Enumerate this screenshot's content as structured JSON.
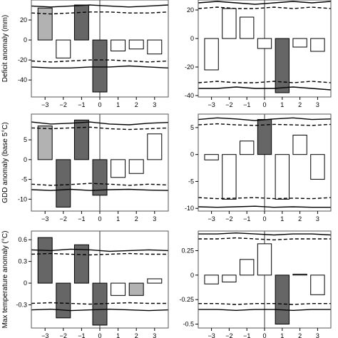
{
  "chart_data": [
    {
      "type": "bar",
      "ylabel": "Deficit anomaly (mm)",
      "categories": [
        "-3",
        "-2",
        "-1",
        "0",
        "1",
        "2",
        "3"
      ],
      "values": [
        32,
        -18,
        35,
        -52,
        -11,
        -9,
        -14
      ],
      "bar_colors": [
        "#b2b2b2",
        "#ffffff",
        "#666666",
        "#666666",
        "#ffffff",
        "#ffffff",
        "#ffffff"
      ],
      "ylim": [
        -57,
        40
      ],
      "yticks": [
        -40,
        -20,
        0,
        20
      ],
      "upper_solid": [
        34,
        33,
        34,
        35,
        34,
        33,
        34,
        35
      ],
      "upper_dashed": [
        27,
        26,
        27,
        28,
        28,
        27,
        27,
        28
      ],
      "lower_dashed": [
        -21,
        -22,
        -21,
        -20,
        -20,
        -21,
        -22,
        -21
      ],
      "lower_solid": [
        -27,
        -28,
        -28,
        -27,
        -27,
        -26,
        -27,
        -28
      ]
    },
    {
      "type": "bar",
      "ylabel": "",
      "categories": [
        "-3",
        "-2",
        "-1",
        "0",
        "1",
        "2",
        "3"
      ],
      "values": [
        -22,
        21,
        15,
        -7,
        -38,
        -6,
        -9
      ],
      "bar_colors": [
        "#ffffff",
        "#ffffff",
        "#ffffff",
        "#ffffff",
        "#666666",
        "#ffffff",
        "#ffffff"
      ],
      "ylim": [
        -41,
        27
      ],
      "yticks": [
        -40,
        -20,
        0,
        20
      ],
      "upper_solid": [
        25,
        26,
        25,
        24,
        25,
        26,
        25,
        26
      ],
      "upper_dashed": [
        21,
        22,
        21,
        21,
        22,
        21,
        22,
        21
      ],
      "lower_dashed": [
        -31,
        -30,
        -31,
        -31,
        -30,
        -31,
        -30,
        -31
      ],
      "lower_solid": [
        -35,
        -35,
        -34,
        -35,
        -35,
        -34,
        -35,
        -36
      ]
    },
    {
      "type": "bar",
      "ylabel": "GDD anomaly (base 5°C)",
      "categories": [
        "-3",
        "-2",
        "-1",
        "0",
        "1",
        "2",
        "3"
      ],
      "values": [
        8.5,
        -12,
        10,
        -9,
        -4.5,
        -3.5,
        6.5
      ],
      "bar_colors": [
        "#b2b2b2",
        "#666666",
        "#666666",
        "#666666",
        "#ffffff",
        "#ffffff",
        "#ffffff"
      ],
      "ylim": [
        -13,
        11.5
      ],
      "yticks": [
        -10,
        -5,
        0,
        5
      ],
      "upper_solid": [
        9.5,
        9,
        9.2,
        9.5,
        9,
        8.8,
        9.2,
        9.4
      ],
      "upper_dashed": [
        8,
        7.8,
        8,
        8.2,
        7.8,
        7.6,
        7.8,
        8
      ],
      "lower_dashed": [
        -6.2,
        -6.5,
        -6.3,
        -6,
        -6.2,
        -6.5,
        -6.2,
        -6.4
      ],
      "lower_solid": [
        -7.6,
        -7.8,
        -7.5,
        -7.8,
        -7.6,
        -7.5,
        -7.7,
        -7.8
      ]
    },
    {
      "type": "bar",
      "ylabel": "",
      "categories": [
        "-3",
        "-2",
        "-1",
        "0",
        "1",
        "2",
        "3"
      ],
      "values": [
        -1,
        -8.3,
        2.5,
        6.5,
        -8.3,
        3.6,
        -4.6
      ],
      "bar_colors": [
        "#ffffff",
        "#ffffff",
        "#ffffff",
        "#666666",
        "#ffffff",
        "#ffffff",
        "#ffffff"
      ],
      "ylim": [
        -10.5,
        7.5
      ],
      "yticks": [
        -10,
        -5,
        0,
        5
      ],
      "upper_solid": [
        6.5,
        6.8,
        6.6,
        6.3,
        6.6,
        6.8,
        6.5,
        6.6
      ],
      "upper_dashed": [
        5.5,
        5.7,
        5.5,
        5.4,
        5.6,
        5.5,
        5.4,
        5.6
      ],
      "lower_dashed": [
        -8,
        -8.2,
        -8.1,
        -8,
        -8.2,
        -8.1,
        -8.2,
        -8
      ],
      "lower_solid": [
        -9.7,
        -9.8,
        -9.7,
        -9.6,
        -9.8,
        -9.7,
        -9.8,
        -9.8
      ]
    },
    {
      "type": "bar",
      "ylabel": "Max temperature anomaly (°C)",
      "categories": [
        "-3",
        "-2",
        "-1",
        "0",
        "1",
        "2",
        "3"
      ],
      "values": [
        0.63,
        -0.48,
        0.53,
        -0.58,
        -0.17,
        -0.17,
        0.06
      ],
      "bar_colors": [
        "#666666",
        "#666666",
        "#666666",
        "#666666",
        "#ffffff",
        "#b2b2b2",
        "#ffffff"
      ],
      "ylim": [
        -0.62,
        0.72
      ],
      "yticks": [
        -0.3,
        0.0,
        0.3,
        0.6
      ],
      "upper_solid": [
        0.46,
        0.45,
        0.47,
        0.46,
        0.44,
        0.45,
        0.46,
        0.45
      ],
      "upper_dashed": [
        0.4,
        0.41,
        0.4,
        0.39,
        0.4,
        0.41,
        0.4,
        0.4
      ],
      "lower_dashed": [
        -0.28,
        -0.27,
        -0.28,
        -0.29,
        -0.28,
        -0.27,
        -0.28,
        -0.28
      ],
      "lower_solid": [
        -0.37,
        -0.36,
        -0.38,
        -0.37,
        -0.36,
        -0.37,
        -0.38,
        -0.37
      ]
    },
    {
      "type": "bar",
      "ylabel": "",
      "categories": [
        "-3",
        "-2",
        "-1",
        "0",
        "1",
        "2",
        "3"
      ],
      "values": [
        -0.09,
        -0.07,
        0.16,
        0.32,
        -0.5,
        0.01,
        -0.2
      ],
      "bar_colors": [
        "#ffffff",
        "#ffffff",
        "#ffffff",
        "#ffffff",
        "#666666",
        "#ffffff",
        "#ffffff"
      ],
      "ylim": [
        -0.54,
        0.45
      ],
      "yticks": [
        -0.5,
        -0.25,
        0.0,
        0.25
      ],
      "upper_solid": [
        0.42,
        0.42,
        0.43,
        0.42,
        0.41,
        0.42,
        0.42,
        0.41
      ],
      "upper_dashed": [
        0.37,
        0.37,
        0.38,
        0.37,
        0.36,
        0.37,
        0.37,
        0.37
      ],
      "lower_dashed": [
        -0.29,
        -0.29,
        -0.3,
        -0.29,
        -0.29,
        -0.3,
        -0.29,
        -0.29
      ],
      "lower_solid": [
        -0.35,
        -0.35,
        -0.36,
        -0.35,
        -0.35,
        -0.36,
        -0.35,
        -0.35
      ]
    }
  ]
}
